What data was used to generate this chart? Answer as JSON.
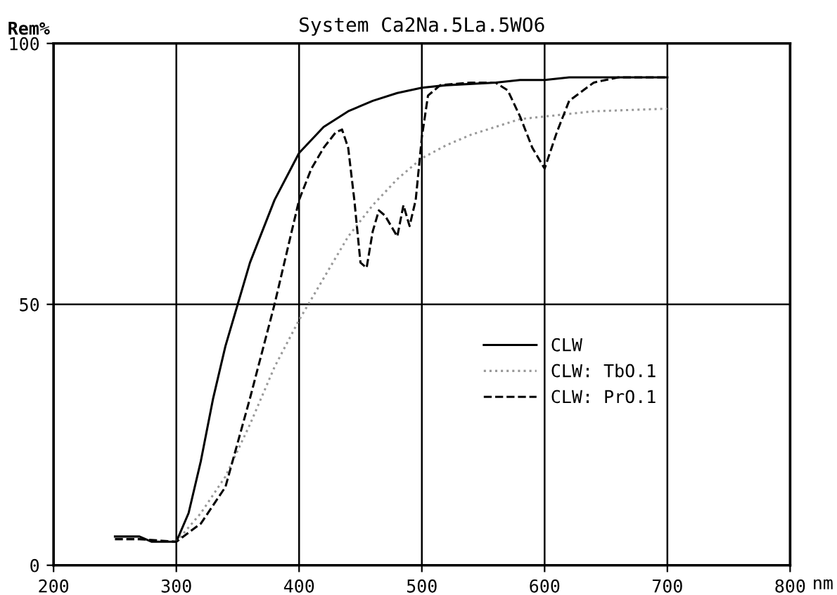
{
  "chart_data": {
    "type": "line",
    "title": "System Ca2Na.5La.5WO6",
    "xlabel": "nm",
    "ylabel": "Rem%",
    "xlim": [
      200,
      800
    ],
    "xticks": [
      200,
      300,
      400,
      500,
      600,
      700,
      800
    ],
    "ylim": [
      0,
      100
    ],
    "yticks": [
      0,
      50,
      100
    ],
    "grid": true,
    "legend": "right",
    "marker": "none",
    "series": [
      {
        "name": "CLW",
        "color": "#000000",
        "line_style": "solid",
        "x": [
          250,
          270,
          280,
          300,
          310,
          320,
          330,
          340,
          350,
          360,
          380,
          400,
          420,
          440,
          460,
          480,
          500,
          520,
          560,
          580,
          600,
          620,
          700
        ],
        "values": [
          5.5,
          5.5,
          4.5,
          4.5,
          10,
          20,
          32,
          42,
          50,
          58,
          70,
          79,
          84,
          87,
          89,
          90.5,
          91.5,
          92,
          92.5,
          93,
          93,
          93.5,
          93.5
        ]
      },
      {
        "name": "CLW: TbO.1",
        "color": "#999999",
        "line_style": "dotted",
        "x": [
          300,
          320,
          340,
          360,
          380,
          400,
          420,
          440,
          460,
          480,
          500,
          520,
          540,
          560,
          580,
          600,
          640,
          700
        ],
        "values": [
          4.5,
          10,
          17,
          27,
          38,
          47,
          55,
          63,
          69,
          74,
          78,
          80.5,
          82.5,
          84,
          85.5,
          86,
          87,
          87.5
        ]
      },
      {
        "name": "CLW: PrO.1",
        "color": "#000000",
        "line_style": "dashed",
        "x": [
          250,
          270,
          300,
          320,
          340,
          360,
          380,
          390,
          400,
          410,
          420,
          430,
          435,
          440,
          445,
          450,
          455,
          460,
          465,
          470,
          480,
          485,
          490,
          495,
          500,
          505,
          515,
          540,
          560,
          570,
          580,
          590,
          600,
          610,
          620,
          640,
          660,
          700
        ],
        "values": [
          5,
          5,
          4.5,
          8,
          15,
          32,
          50,
          60,
          70,
          76,
          80,
          83,
          83.5,
          80,
          70,
          58,
          57,
          64,
          68,
          67,
          63,
          69,
          65,
          70,
          82,
          90,
          92,
          92.5,
          92.5,
          91,
          86,
          80,
          76,
          83,
          89,
          92.5,
          93.5,
          93.5
        ]
      }
    ]
  }
}
